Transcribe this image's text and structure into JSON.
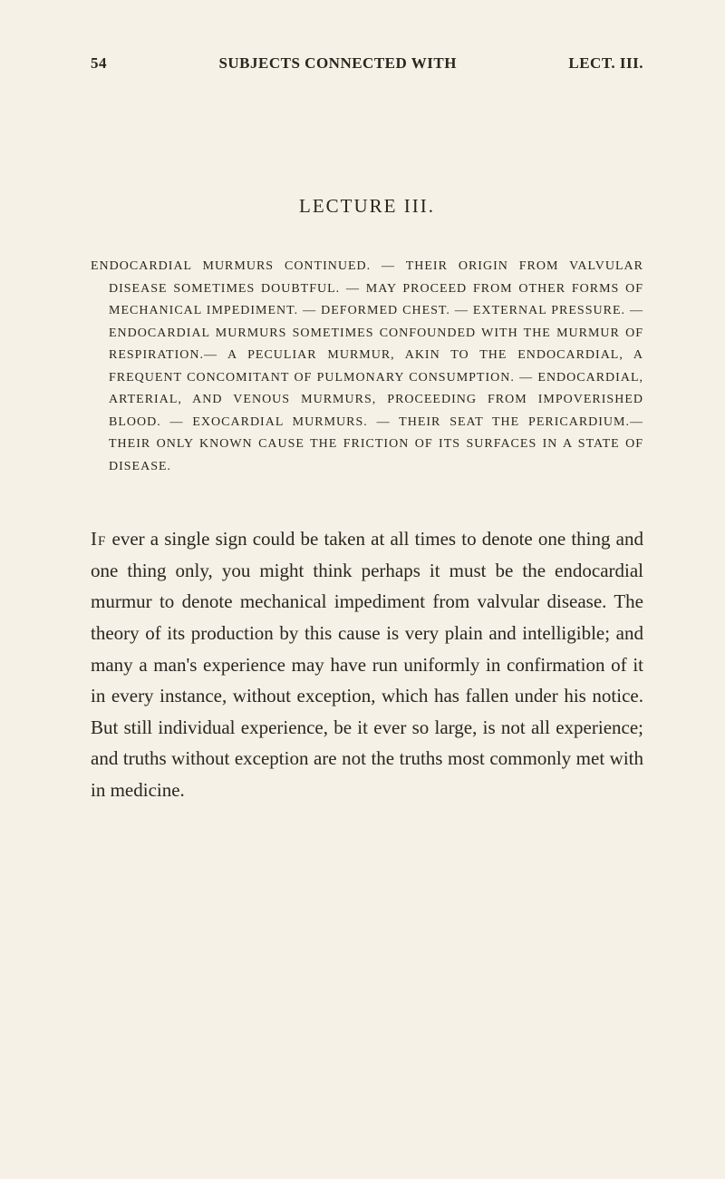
{
  "header": {
    "page_number": "54",
    "running_title_left": "SUBJECTS CONNECTED WITH",
    "running_title_right": "LECT. III."
  },
  "lecture_title": "LECTURE III.",
  "summary": "ENDOCARDIAL MURMURS CONTINUED. — THEIR ORIGIN FROM VALVULAR DISEASE SOMETIMES DOUBTFUL. — MAY PROCEED FROM OTHER FORMS OF MECHANICAL IMPEDIMENT. — DEFORMED CHEST. — EXTERNAL PRESSURE. — ENDOCARDIAL MURMURS SOMETIMES CONFOUNDED WITH THE MURMUR OF RESPIRATION.— A PECULIAR MURMUR, AKIN TO THE ENDOCARDIAL, A FREQUENT CONCOMITANT OF PULMONARY CONSUMPTION. — ENDOCARDIAL, ARTERIAL, AND VENOUS MURMURS, PROCEEDING FROM IMPOVERISHED BLOOD. — EXOCARDIAL MURMURS. — THEIR SEAT THE PERICARDIUM.—THEIR ONLY KNOWN CAUSE THE FRICTION OF ITS SURFACES IN A STATE OF DISEASE.",
  "body": {
    "first_word": "If",
    "text": " ever a single sign could be taken at all times to denote one thing and one thing only, you might think perhaps it must be the endocardial murmur to denote mechanical impediment from valvular disease. The theory of its production by this cause is very plain and intelligible; and many a man's experience may have run uniformly in confirmation of it in every instance, without exception, which has fallen under his notice. But still individual experience, be it ever so large, is not all experience; and truths without exception are not the truths most commonly met with in medicine."
  },
  "colors": {
    "background": "#f5f1e6",
    "text": "#2a2620"
  },
  "typography": {
    "body_fontsize": 21,
    "summary_fontsize": 14,
    "title_fontsize": 21,
    "header_fontsize": 17,
    "font_family": "Georgia, Times New Roman, serif"
  }
}
